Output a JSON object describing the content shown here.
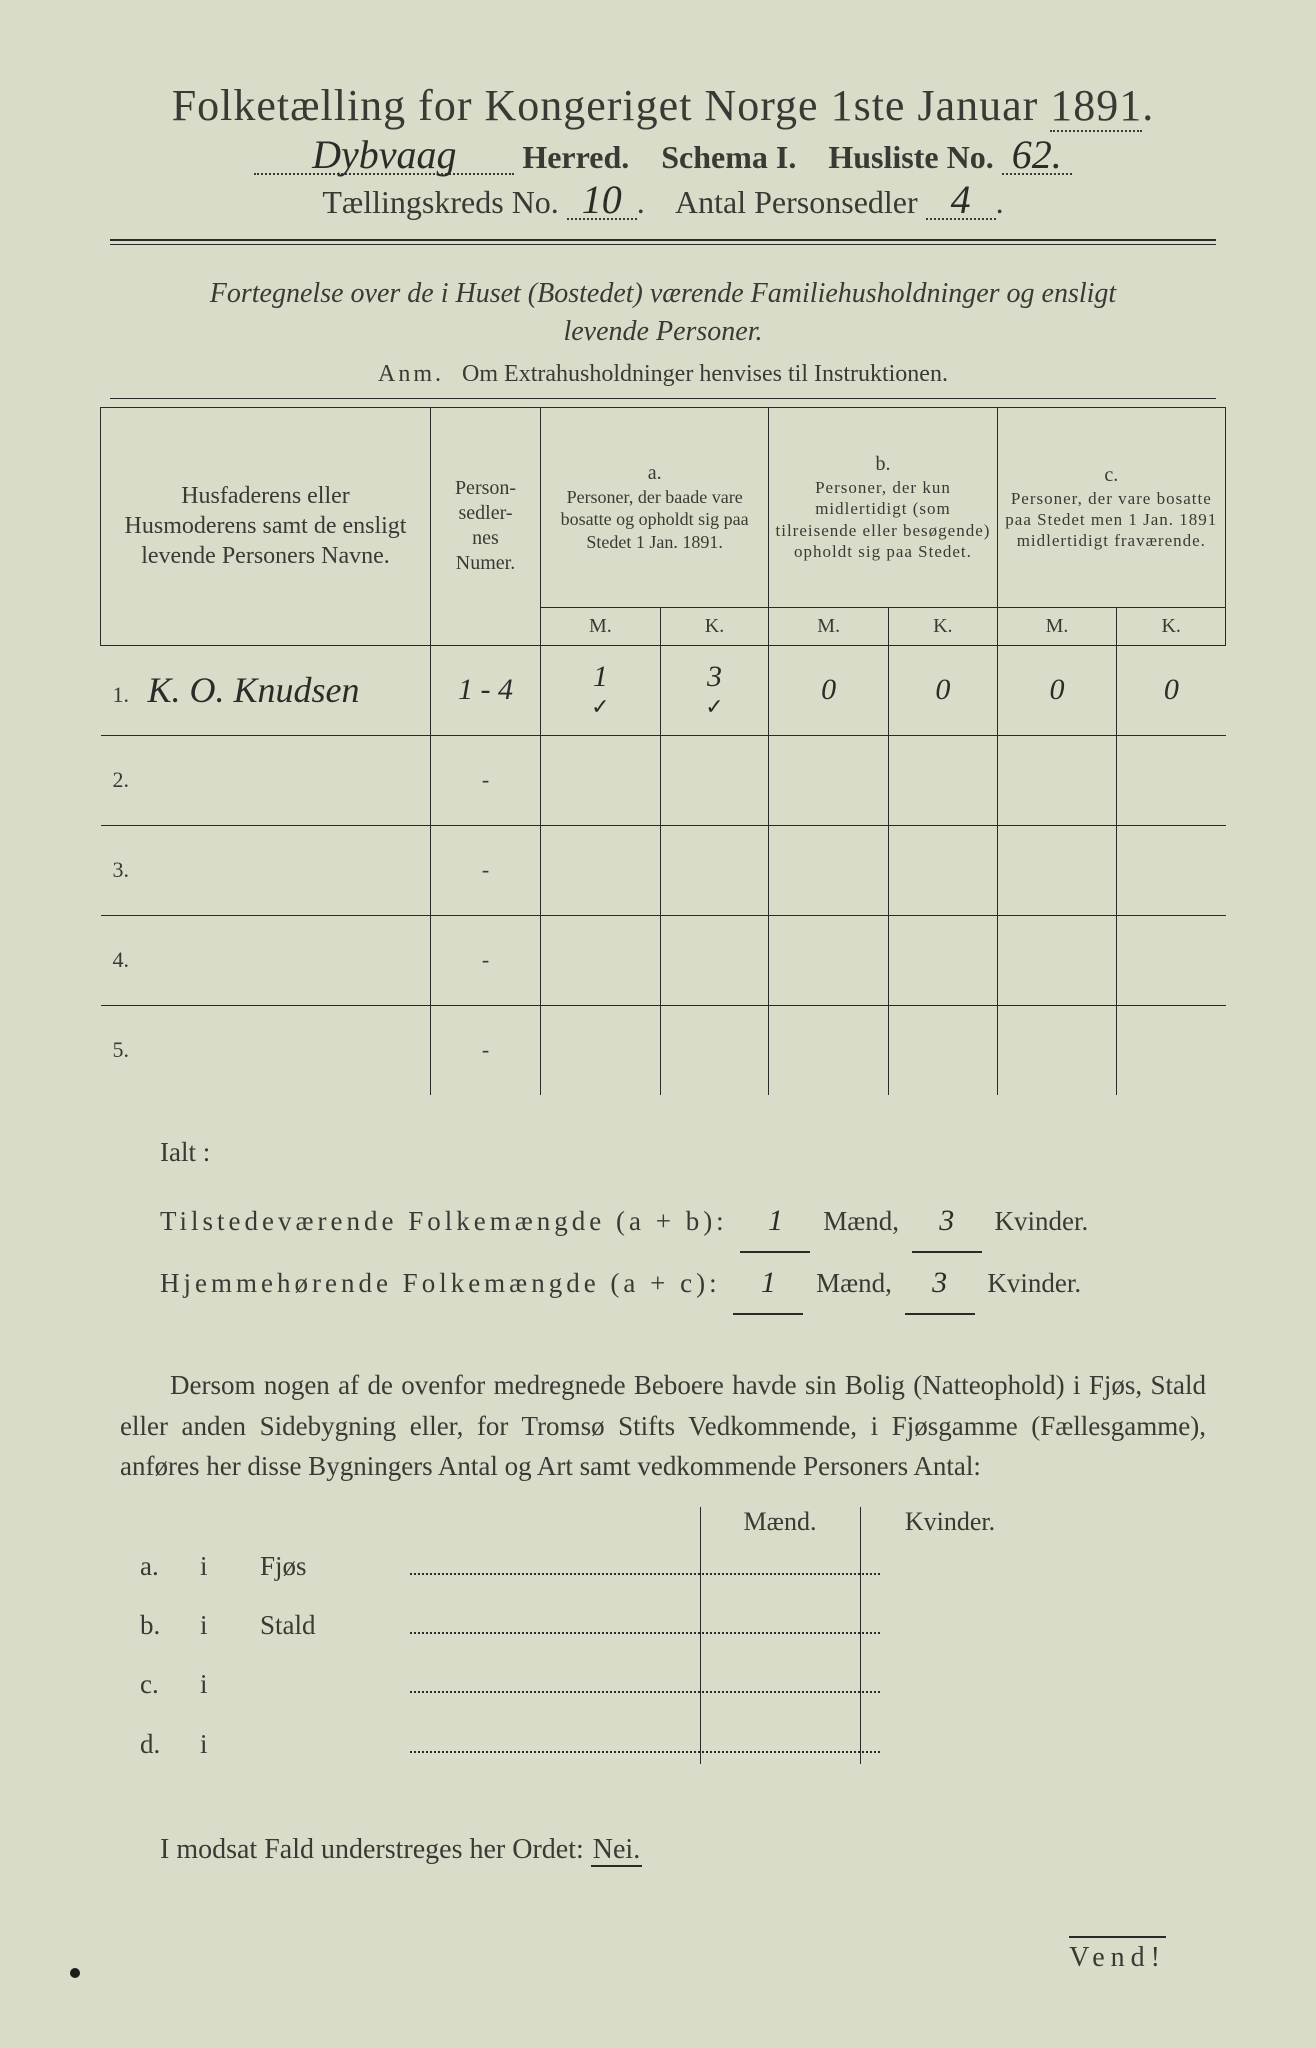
{
  "colors": {
    "paper": "#d8dcc8",
    "ink": "#3a3a35",
    "rule": "#2a2a28"
  },
  "title": {
    "pre": "Folketælling for Kongeriget Norge 1ste Januar ",
    "year": "1891",
    "suffix": "."
  },
  "header": {
    "herred_value": "Dybvaag",
    "herred_label": "Herred.",
    "schema_label": "Schema I.",
    "husliste_label": "Husliste No.",
    "husliste_value": "62.",
    "kreds_label": "Tællingskreds No.",
    "kreds_value": "10",
    "antal_label": "Antal Personsedler",
    "antal_value": "4"
  },
  "intro": {
    "line1_a": "Fortegnelse over de i Huset (Bostedet) værende Familiehusholdninger og ensligt",
    "line2": "levende Personer."
  },
  "anm": {
    "prefix": "Anm.",
    "text": "Om Extrahusholdninger henvises til Instruktionen."
  },
  "table": {
    "col_name": "Husfaderens eller Husmoderens samt de ensligt levende Personers Navne.",
    "col_num": "Person-\nsedler-\nnes\nNumer.",
    "col_a_label": "a.",
    "col_a": "Personer, der baade vare bosatte og opholdt sig paa Stedet 1 Jan. 1891.",
    "col_b_label": "b.",
    "col_b": "Personer, der kun midlertidigt (som tilreisende eller besøgende) opholdt sig paa Stedet.",
    "col_c_label": "c.",
    "col_c": "Personer, der vare bosatte paa Stedet men 1 Jan. 1891 midlertidigt fraværende.",
    "mk_m": "M.",
    "mk_k": "K.",
    "rows": [
      {
        "n": "1.",
        "name": "K. O. Knudsen",
        "num": "1 - 4",
        "a_m": "1",
        "a_k": "3",
        "b_m": "0",
        "b_k": "0",
        "c_m": "0",
        "c_k": "0",
        "check_a_m": "✓",
        "check_a_k": "✓"
      },
      {
        "n": "2.",
        "name": "",
        "num": "-",
        "a_m": "",
        "a_k": "",
        "b_m": "",
        "b_k": "",
        "c_m": "",
        "c_k": ""
      },
      {
        "n": "3.",
        "name": "",
        "num": "-",
        "a_m": "",
        "a_k": "",
        "b_m": "",
        "b_k": "",
        "c_m": "",
        "c_k": ""
      },
      {
        "n": "4.",
        "name": "",
        "num": "-",
        "a_m": "",
        "a_k": "",
        "b_m": "",
        "b_k": "",
        "c_m": "",
        "c_k": ""
      },
      {
        "n": "5.",
        "name": "",
        "num": "-",
        "a_m": "",
        "a_k": "",
        "b_m": "",
        "b_k": "",
        "c_m": "",
        "c_k": ""
      }
    ]
  },
  "totals": {
    "ialt": "Ialt :",
    "line1_label": "Tilstedeværende Folkemængde (a + b):",
    "line2_label": "Hjemmehørende Folkemængde (a + c):",
    "maend": "Mænd,",
    "kvinder": "Kvinder.",
    "v1_m": "1",
    "v1_k": "3",
    "v2_m": "1",
    "v2_k": "3"
  },
  "paragraph": "Dersom nogen af de ovenfor medregnede Beboere havde sin Bolig (Natteophold) i Fjøs, Stald eller anden Sidebygning eller, for Tromsø Stifts Vedkommende, i Fjøsgamme (Fællesgamme), anføres her disse Bygningers Antal og Art samt vedkommende Personers Antal:",
  "bldg": {
    "head_m": "Mænd.",
    "head_k": "Kvinder.",
    "rows": [
      {
        "l": "a.",
        "i": "i",
        "name": "Fjøs"
      },
      {
        "l": "b.",
        "i": "i",
        "name": "Stald"
      },
      {
        "l": "c.",
        "i": "i",
        "name": ""
      },
      {
        "l": "d.",
        "i": "i",
        "name": ""
      }
    ]
  },
  "closing": {
    "text": "I modsat Fald understreges her Ordet: ",
    "nei": "Nei."
  },
  "vend": "Vend!"
}
